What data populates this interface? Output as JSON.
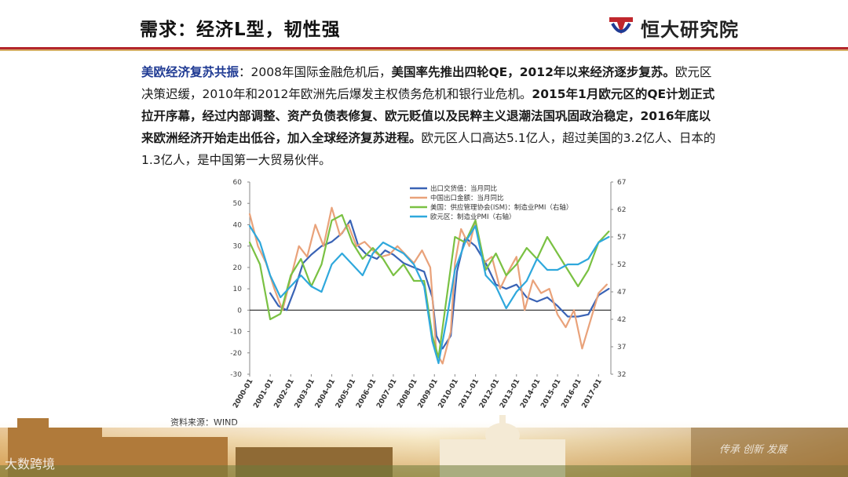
{
  "header": {
    "title": "需求：经济L型，韧性强",
    "logo_text": "恒大研究院",
    "colors": {
      "rule_red": "#b3262c",
      "rule_gold": "#d8b16a",
      "logo_red": "#c0272d",
      "logo_blue": "#1f3a93"
    }
  },
  "paragraph": {
    "lead": "美欧经济复苏共振",
    "t1": "：2008年国际金融危机后，",
    "t2": "美国率先推出四轮QE，2012年以来经济逐步复苏。",
    "t3": "欧元区决策迟缓，2010年和2012年欧洲先后爆发主权债务危机和银行业危机。",
    "t4": "2015年1月欧元区的QE计划正式拉开序幕，经过内部调整、资产负债表修复、欧元贬值以及民粹主义退潮法国巩固政治稳定，2016年底以来欧洲经济开始走出低谷，加入全球经济复苏进程。",
    "t5": "欧元区人口高达5.1亿人，超过美国的3.2亿人、日本的1.3亿人，是中国第一大贸易伙伴。"
  },
  "source": "资料来源：WIND",
  "watermark": "大数跨境",
  "footer_script": "传承 创新 发展",
  "chart_data": {
    "type": "line",
    "title": "",
    "x_ticks": [
      "2000-01",
      "2001-01",
      "2002-01",
      "2003-01",
      "2004-01",
      "2005-01",
      "2006-01",
      "2007-01",
      "2008-01",
      "2009-01",
      "2010-01",
      "2011-01",
      "2012-01",
      "2013-01",
      "2014-01",
      "2015-01",
      "2016-01",
      "2017-01"
    ],
    "x_range": [
      2000.0,
      2017.6
    ],
    "ylim_left": [
      -30,
      60
    ],
    "y_ticks_left": [
      "-30",
      "-20",
      "-10",
      "0",
      "10",
      "20",
      "30",
      "40",
      "50",
      "60"
    ],
    "ylim_right": [
      32,
      67
    ],
    "y_ticks_right": [
      "32",
      "37",
      "42",
      "47",
      "52",
      "57",
      "62",
      "67"
    ],
    "grid": false,
    "legend_position": "top-right",
    "series": [
      {
        "name": "出口交货值：当月同比",
        "axis": "left",
        "color": "#3a63b5",
        "x": [
          2001.0,
          2001.4,
          2001.8,
          2002.2,
          2002.6,
          2003.0,
          2003.5,
          2004.0,
          2004.5,
          2004.9,
          2005.3,
          2005.7,
          2006.2,
          2006.6,
          2007.0,
          2007.5,
          2008.0,
          2008.5,
          2008.9,
          2009.1,
          2009.4,
          2009.8,
          2010.1,
          2010.5,
          2011.0,
          2011.5,
          2012.0,
          2012.5,
          2013.0,
          2013.5,
          2014.0,
          2014.5,
          2015.0,
          2015.5,
          2016.0,
          2016.5,
          2017.0,
          2017.5
        ],
        "y": [
          8,
          2,
          0,
          10,
          22,
          26,
          30,
          32,
          36,
          42,
          30,
          26,
          24,
          28,
          26,
          22,
          20,
          18,
          6,
          -12,
          -18,
          -12,
          18,
          34,
          30,
          22,
          12,
          10,
          12,
          6,
          4,
          6,
          2,
          -3,
          -3,
          -2,
          7,
          10
        ]
      },
      {
        "name": "中国出口金额：当月同比",
        "axis": "left",
        "color": "#e9a27a",
        "x": [
          2000.0,
          2000.4,
          2000.8,
          2001.2,
          2001.6,
          2002.0,
          2002.4,
          2002.8,
          2003.2,
          2003.6,
          2004.0,
          2004.4,
          2004.8,
          2005.2,
          2005.6,
          2006.0,
          2006.4,
          2006.8,
          2007.2,
          2007.6,
          2008.0,
          2008.4,
          2008.8,
          2009.1,
          2009.4,
          2009.8,
          2010.0,
          2010.3,
          2010.7,
          2011.0,
          2011.4,
          2011.8,
          2012.2,
          2012.6,
          2013.0,
          2013.4,
          2013.8,
          2014.2,
          2014.6,
          2015.0,
          2015.4,
          2015.8,
          2016.2,
          2016.6,
          2017.0,
          2017.4
        ],
        "y": [
          45,
          30,
          22,
          10,
          0,
          15,
          30,
          25,
          40,
          30,
          48,
          35,
          40,
          30,
          32,
          28,
          25,
          26,
          30,
          26,
          22,
          28,
          20,
          -20,
          -25,
          -10,
          22,
          38,
          30,
          42,
          22,
          25,
          10,
          18,
          25,
          0,
          14,
          8,
          10,
          -2,
          -8,
          0,
          -18,
          -5,
          8,
          12
        ]
      },
      {
        "name": "美国：供应管理协会(ISM)：制造业PMI（右轴）",
        "axis": "right",
        "color": "#7ac143",
        "x": [
          2000.0,
          2000.5,
          2001.0,
          2001.5,
          2002.0,
          2002.5,
          2003.0,
          2003.5,
          2004.0,
          2004.5,
          2005.0,
          2005.5,
          2006.0,
          2006.5,
          2007.0,
          2007.5,
          2008.0,
          2008.5,
          2008.9,
          2009.2,
          2009.6,
          2010.0,
          2010.5,
          2011.0,
          2011.5,
          2012.0,
          2012.5,
          2013.0,
          2013.5,
          2014.0,
          2014.5,
          2015.0,
          2015.5,
          2016.0,
          2016.5,
          2017.0,
          2017.5
        ],
        "y": [
          56,
          52,
          42,
          43,
          50,
          53,
          48,
          52,
          60,
          61,
          56,
          53,
          55,
          53,
          50,
          52,
          49,
          49,
          39,
          35,
          46,
          57,
          56,
          60,
          51,
          54,
          50,
          52,
          55,
          53,
          57,
          54,
          51,
          48,
          51,
          56,
          58
        ]
      },
      {
        "name": "欧元区：制造业PMI（右轴）",
        "axis": "right",
        "color": "#2fa8dc",
        "x": [
          2000.0,
          2000.5,
          2001.0,
          2001.5,
          2002.0,
          2002.5,
          2003.0,
          2003.5,
          2004.0,
          2004.5,
          2005.0,
          2005.5,
          2006.0,
          2006.5,
          2007.0,
          2007.5,
          2008.0,
          2008.5,
          2008.9,
          2009.2,
          2009.6,
          2010.0,
          2010.5,
          2011.0,
          2011.5,
          2012.0,
          2012.5,
          2013.0,
          2013.5,
          2014.0,
          2014.5,
          2015.0,
          2015.5,
          2016.0,
          2016.5,
          2017.0,
          2017.5
        ],
        "y": [
          59,
          56,
          50,
          46,
          48,
          50,
          48,
          47,
          52,
          54,
          52,
          50,
          54,
          56,
          55,
          54,
          52,
          48,
          38,
          34,
          42,
          51,
          56,
          59,
          50,
          48,
          44,
          47,
          49,
          53,
          51,
          51,
          52,
          52,
          53,
          56,
          57
        ]
      }
    ]
  }
}
